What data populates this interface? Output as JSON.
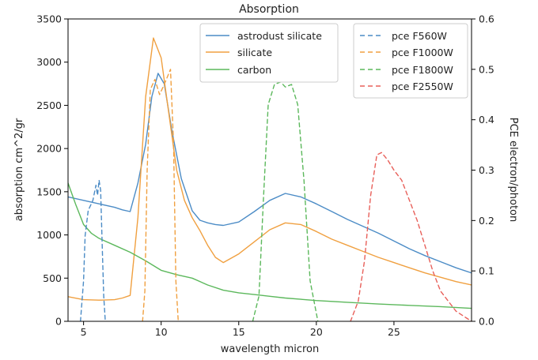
{
  "chart_data": {
    "type": "line",
    "title": "Absorption",
    "xlabel": "wavelength micron",
    "ylabel": "absorption cm^2/gr",
    "y2label": "PCE electron/photon",
    "xlim": [
      4,
      30
    ],
    "ylim": [
      0,
      3500
    ],
    "y2lim": [
      0,
      0.6
    ],
    "xticks": [
      5,
      10,
      15,
      20,
      25
    ],
    "yticks": [
      0,
      500,
      1000,
      1500,
      2000,
      2500,
      3000,
      3500
    ],
    "y2ticks": [
      0.0,
      0.1,
      0.2,
      0.3,
      0.4,
      0.5,
      0.6
    ],
    "grid": false,
    "legend_left_placement": "top-center",
    "legend_right_placement": "top-right",
    "series": [
      {
        "name": "astrodust silicate",
        "axis": "left",
        "color": "#4c8cc6",
        "style": "solid",
        "points": [
          [
            4,
            1440
          ],
          [
            5,
            1400
          ],
          [
            6,
            1360
          ],
          [
            7,
            1320
          ],
          [
            7.5,
            1290
          ],
          [
            8,
            1270
          ],
          [
            8.5,
            1600
          ],
          [
            9,
            2050
          ],
          [
            9.4,
            2600
          ],
          [
            9.8,
            2870
          ],
          [
            10.2,
            2750
          ],
          [
            10.7,
            2200
          ],
          [
            11.3,
            1650
          ],
          [
            12,
            1280
          ],
          [
            12.5,
            1170
          ],
          [
            13,
            1140
          ],
          [
            13.5,
            1120
          ],
          [
            14,
            1110
          ],
          [
            15,
            1150
          ],
          [
            16,
            1270
          ],
          [
            17,
            1400
          ],
          [
            18,
            1480
          ],
          [
            19,
            1440
          ],
          [
            20,
            1360
          ],
          [
            21,
            1270
          ],
          [
            22,
            1180
          ],
          [
            23,
            1100
          ],
          [
            24,
            1020
          ],
          [
            25,
            930
          ],
          [
            26,
            840
          ],
          [
            27,
            760
          ],
          [
            28,
            690
          ],
          [
            29,
            620
          ],
          [
            30,
            560
          ]
        ]
      },
      {
        "name": "silicate",
        "axis": "left",
        "color": "#f0a040",
        "style": "solid",
        "points": [
          [
            4,
            285
          ],
          [
            5,
            250
          ],
          [
            6,
            245
          ],
          [
            7,
            250
          ],
          [
            7.5,
            270
          ],
          [
            8,
            300
          ],
          [
            8.5,
            1200
          ],
          [
            9,
            2600
          ],
          [
            9.5,
            3280
          ],
          [
            10,
            3050
          ],
          [
            10.5,
            2400
          ],
          [
            11,
            1750
          ],
          [
            11.5,
            1400
          ],
          [
            12,
            1200
          ],
          [
            12.5,
            1050
          ],
          [
            13,
            880
          ],
          [
            13.5,
            740
          ],
          [
            14,
            680
          ],
          [
            15,
            780
          ],
          [
            16,
            920
          ],
          [
            17,
            1060
          ],
          [
            18,
            1140
          ],
          [
            19,
            1120
          ],
          [
            20,
            1040
          ],
          [
            21,
            950
          ],
          [
            22,
            880
          ],
          [
            23,
            810
          ],
          [
            24,
            740
          ],
          [
            25,
            680
          ],
          [
            26,
            620
          ],
          [
            27,
            560
          ],
          [
            28,
            510
          ],
          [
            29,
            460
          ],
          [
            30,
            420
          ]
        ]
      },
      {
        "name": "carbon",
        "axis": "left",
        "color": "#5cb85c",
        "style": "solid",
        "points": [
          [
            4,
            1600
          ],
          [
            4.5,
            1350
          ],
          [
            5,
            1120
          ],
          [
            5.5,
            1020
          ],
          [
            6,
            960
          ],
          [
            7,
            880
          ],
          [
            8,
            800
          ],
          [
            9,
            700
          ],
          [
            10,
            590
          ],
          [
            11,
            540
          ],
          [
            12,
            500
          ],
          [
            13,
            420
          ],
          [
            14,
            360
          ],
          [
            15,
            330
          ],
          [
            16,
            310
          ],
          [
            17,
            290
          ],
          [
            18,
            270
          ],
          [
            19,
            255
          ],
          [
            20,
            240
          ],
          [
            22,
            220
          ],
          [
            24,
            200
          ],
          [
            26,
            185
          ],
          [
            28,
            170
          ],
          [
            30,
            150
          ]
        ]
      },
      {
        "name": "pce F560W",
        "axis": "right",
        "color": "#4c8cc6",
        "style": "dashed",
        "points": [
          [
            4.8,
            0.0
          ],
          [
            5.0,
            0.08
          ],
          [
            5.1,
            0.17
          ],
          [
            5.3,
            0.22
          ],
          [
            5.6,
            0.24
          ],
          [
            5.8,
            0.27
          ],
          [
            5.9,
            0.25
          ],
          [
            6.0,
            0.28
          ],
          [
            6.1,
            0.26
          ],
          [
            6.2,
            0.15
          ],
          [
            6.3,
            0.05
          ],
          [
            6.4,
            0.0
          ]
        ]
      },
      {
        "name": "pce F1000W",
        "axis": "right",
        "color": "#f0a040",
        "style": "dashed",
        "points": [
          [
            8.8,
            0.0
          ],
          [
            8.95,
            0.06
          ],
          [
            9.1,
            0.3
          ],
          [
            9.3,
            0.46
          ],
          [
            9.6,
            0.48
          ],
          [
            9.9,
            0.45
          ],
          [
            10.2,
            0.47
          ],
          [
            10.6,
            0.5
          ],
          [
            10.8,
            0.35
          ],
          [
            10.95,
            0.08
          ],
          [
            11.1,
            0.0
          ]
        ]
      },
      {
        "name": "pce F1800W",
        "axis": "right",
        "color": "#5cb85c",
        "style": "dashed",
        "points": [
          [
            15.9,
            0.0
          ],
          [
            16.3,
            0.05
          ],
          [
            16.6,
            0.25
          ],
          [
            16.9,
            0.43
          ],
          [
            17.3,
            0.47
          ],
          [
            17.7,
            0.475
          ],
          [
            18.0,
            0.465
          ],
          [
            18.4,
            0.47
          ],
          [
            18.8,
            0.43
          ],
          [
            19.2,
            0.28
          ],
          [
            19.6,
            0.08
          ],
          [
            20.1,
            0.0
          ]
        ]
      },
      {
        "name": "pce F2550W",
        "axis": "right",
        "color": "#e8605a",
        "style": "dashed",
        "points": [
          [
            22.2,
            0.0
          ],
          [
            22.7,
            0.04
          ],
          [
            23.1,
            0.12
          ],
          [
            23.5,
            0.25
          ],
          [
            23.9,
            0.33
          ],
          [
            24.2,
            0.335
          ],
          [
            24.6,
            0.32
          ],
          [
            25.0,
            0.3
          ],
          [
            25.5,
            0.28
          ],
          [
            26.0,
            0.24
          ],
          [
            26.5,
            0.2
          ],
          [
            27.0,
            0.15
          ],
          [
            27.5,
            0.1
          ],
          [
            28.0,
            0.06
          ],
          [
            28.5,
            0.04
          ],
          [
            29.0,
            0.02
          ],
          [
            29.5,
            0.01
          ],
          [
            30,
            0.0
          ]
        ]
      }
    ]
  }
}
